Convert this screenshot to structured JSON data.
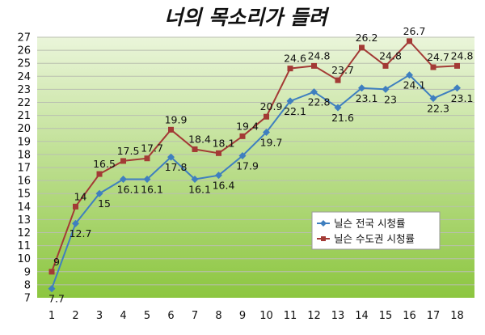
{
  "chart_data": {
    "type": "line",
    "title": "너의 목소리가 들려",
    "categories": [
      "1",
      "2",
      "3",
      "4",
      "5",
      "6",
      "7",
      "8",
      "9",
      "10",
      "11",
      "12",
      "13",
      "14",
      "15",
      "16",
      "17",
      "18"
    ],
    "ylim": [
      7,
      27
    ],
    "yticks": [
      7,
      8,
      9,
      10,
      11,
      12,
      13,
      14,
      15,
      16,
      17,
      18,
      19,
      20,
      21,
      22,
      23,
      24,
      25,
      26,
      27
    ],
    "grid": true,
    "legend_position": "lower-right",
    "series": [
      {
        "name": "닐슨 전국 시청률",
        "color": "#3F7FBF",
        "marker": "diamond",
        "values": [
          7.7,
          12.7,
          15,
          16.1,
          16.1,
          17.8,
          16.1,
          16.4,
          17.9,
          19.7,
          22.1,
          22.8,
          21.6,
          23.1,
          23,
          24.1,
          22.3,
          23.1
        ]
      },
      {
        "name": "닐슨 수도권 시청률",
        "color": "#A33A35",
        "marker": "square",
        "values": [
          9,
          14,
          16.5,
          17.5,
          17.7,
          19.9,
          18.4,
          18.1,
          19.4,
          20.9,
          24.6,
          24.8,
          23.7,
          26.2,
          24.8,
          26.7,
          24.7,
          24.8
        ]
      }
    ],
    "background": {
      "top": "#EAF5DA",
      "bottom": "#8CC63F"
    }
  }
}
